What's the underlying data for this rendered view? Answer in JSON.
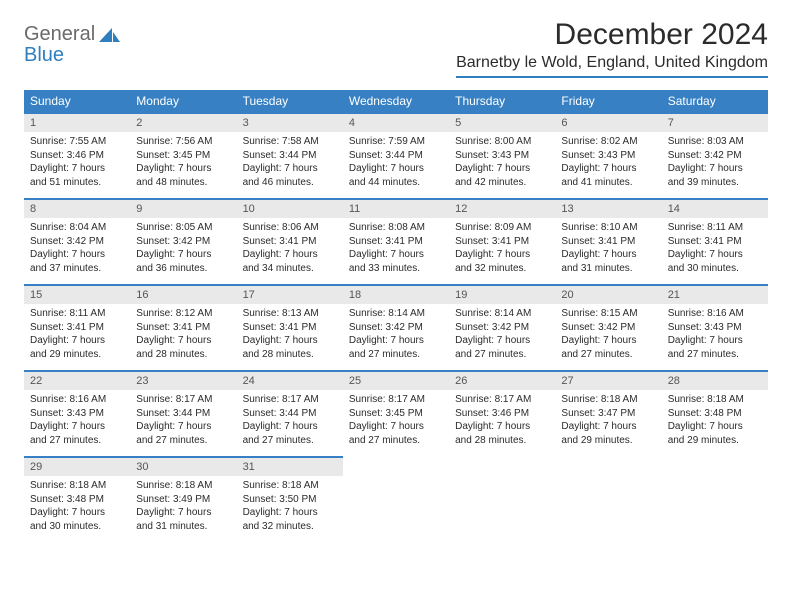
{
  "logo": {
    "word1": "General",
    "word2": "Blue"
  },
  "title": "December 2024",
  "location": "Barnetby le Wold, England, United Kingdom",
  "colors": {
    "brand": "#3780c3",
    "daynum_bg": "#e9e9e9",
    "text": "#2b2b2b",
    "logo_gray": "#6a6a6a",
    "logo_blue": "#2f7fbf"
  },
  "weekdays": [
    "Sunday",
    "Monday",
    "Tuesday",
    "Wednesday",
    "Thursday",
    "Friday",
    "Saturday"
  ],
  "weeks": [
    [
      {
        "n": "1",
        "sunrise": "Sunrise: 7:55 AM",
        "sunset": "Sunset: 3:46 PM",
        "day1": "Daylight: 7 hours",
        "day2": "and 51 minutes."
      },
      {
        "n": "2",
        "sunrise": "Sunrise: 7:56 AM",
        "sunset": "Sunset: 3:45 PM",
        "day1": "Daylight: 7 hours",
        "day2": "and 48 minutes."
      },
      {
        "n": "3",
        "sunrise": "Sunrise: 7:58 AM",
        "sunset": "Sunset: 3:44 PM",
        "day1": "Daylight: 7 hours",
        "day2": "and 46 minutes."
      },
      {
        "n": "4",
        "sunrise": "Sunrise: 7:59 AM",
        "sunset": "Sunset: 3:44 PM",
        "day1": "Daylight: 7 hours",
        "day2": "and 44 minutes."
      },
      {
        "n": "5",
        "sunrise": "Sunrise: 8:00 AM",
        "sunset": "Sunset: 3:43 PM",
        "day1": "Daylight: 7 hours",
        "day2": "and 42 minutes."
      },
      {
        "n": "6",
        "sunrise": "Sunrise: 8:02 AM",
        "sunset": "Sunset: 3:43 PM",
        "day1": "Daylight: 7 hours",
        "day2": "and 41 minutes."
      },
      {
        "n": "7",
        "sunrise": "Sunrise: 8:03 AM",
        "sunset": "Sunset: 3:42 PM",
        "day1": "Daylight: 7 hours",
        "day2": "and 39 minutes."
      }
    ],
    [
      {
        "n": "8",
        "sunrise": "Sunrise: 8:04 AM",
        "sunset": "Sunset: 3:42 PM",
        "day1": "Daylight: 7 hours",
        "day2": "and 37 minutes."
      },
      {
        "n": "9",
        "sunrise": "Sunrise: 8:05 AM",
        "sunset": "Sunset: 3:42 PM",
        "day1": "Daylight: 7 hours",
        "day2": "and 36 minutes."
      },
      {
        "n": "10",
        "sunrise": "Sunrise: 8:06 AM",
        "sunset": "Sunset: 3:41 PM",
        "day1": "Daylight: 7 hours",
        "day2": "and 34 minutes."
      },
      {
        "n": "11",
        "sunrise": "Sunrise: 8:08 AM",
        "sunset": "Sunset: 3:41 PM",
        "day1": "Daylight: 7 hours",
        "day2": "and 33 minutes."
      },
      {
        "n": "12",
        "sunrise": "Sunrise: 8:09 AM",
        "sunset": "Sunset: 3:41 PM",
        "day1": "Daylight: 7 hours",
        "day2": "and 32 minutes."
      },
      {
        "n": "13",
        "sunrise": "Sunrise: 8:10 AM",
        "sunset": "Sunset: 3:41 PM",
        "day1": "Daylight: 7 hours",
        "day2": "and 31 minutes."
      },
      {
        "n": "14",
        "sunrise": "Sunrise: 8:11 AM",
        "sunset": "Sunset: 3:41 PM",
        "day1": "Daylight: 7 hours",
        "day2": "and 30 minutes."
      }
    ],
    [
      {
        "n": "15",
        "sunrise": "Sunrise: 8:11 AM",
        "sunset": "Sunset: 3:41 PM",
        "day1": "Daylight: 7 hours",
        "day2": "and 29 minutes."
      },
      {
        "n": "16",
        "sunrise": "Sunrise: 8:12 AM",
        "sunset": "Sunset: 3:41 PM",
        "day1": "Daylight: 7 hours",
        "day2": "and 28 minutes."
      },
      {
        "n": "17",
        "sunrise": "Sunrise: 8:13 AM",
        "sunset": "Sunset: 3:41 PM",
        "day1": "Daylight: 7 hours",
        "day2": "and 28 minutes."
      },
      {
        "n": "18",
        "sunrise": "Sunrise: 8:14 AM",
        "sunset": "Sunset: 3:42 PM",
        "day1": "Daylight: 7 hours",
        "day2": "and 27 minutes."
      },
      {
        "n": "19",
        "sunrise": "Sunrise: 8:14 AM",
        "sunset": "Sunset: 3:42 PM",
        "day1": "Daylight: 7 hours",
        "day2": "and 27 minutes."
      },
      {
        "n": "20",
        "sunrise": "Sunrise: 8:15 AM",
        "sunset": "Sunset: 3:42 PM",
        "day1": "Daylight: 7 hours",
        "day2": "and 27 minutes."
      },
      {
        "n": "21",
        "sunrise": "Sunrise: 8:16 AM",
        "sunset": "Sunset: 3:43 PM",
        "day1": "Daylight: 7 hours",
        "day2": "and 27 minutes."
      }
    ],
    [
      {
        "n": "22",
        "sunrise": "Sunrise: 8:16 AM",
        "sunset": "Sunset: 3:43 PM",
        "day1": "Daylight: 7 hours",
        "day2": "and 27 minutes."
      },
      {
        "n": "23",
        "sunrise": "Sunrise: 8:17 AM",
        "sunset": "Sunset: 3:44 PM",
        "day1": "Daylight: 7 hours",
        "day2": "and 27 minutes."
      },
      {
        "n": "24",
        "sunrise": "Sunrise: 8:17 AM",
        "sunset": "Sunset: 3:44 PM",
        "day1": "Daylight: 7 hours",
        "day2": "and 27 minutes."
      },
      {
        "n": "25",
        "sunrise": "Sunrise: 8:17 AM",
        "sunset": "Sunset: 3:45 PM",
        "day1": "Daylight: 7 hours",
        "day2": "and 27 minutes."
      },
      {
        "n": "26",
        "sunrise": "Sunrise: 8:17 AM",
        "sunset": "Sunset: 3:46 PM",
        "day1": "Daylight: 7 hours",
        "day2": "and 28 minutes."
      },
      {
        "n": "27",
        "sunrise": "Sunrise: 8:18 AM",
        "sunset": "Sunset: 3:47 PM",
        "day1": "Daylight: 7 hours",
        "day2": "and 29 minutes."
      },
      {
        "n": "28",
        "sunrise": "Sunrise: 8:18 AM",
        "sunset": "Sunset: 3:48 PM",
        "day1": "Daylight: 7 hours",
        "day2": "and 29 minutes."
      }
    ],
    [
      {
        "n": "29",
        "sunrise": "Sunrise: 8:18 AM",
        "sunset": "Sunset: 3:48 PM",
        "day1": "Daylight: 7 hours",
        "day2": "and 30 minutes."
      },
      {
        "n": "30",
        "sunrise": "Sunrise: 8:18 AM",
        "sunset": "Sunset: 3:49 PM",
        "day1": "Daylight: 7 hours",
        "day2": "and 31 minutes."
      },
      {
        "n": "31",
        "sunrise": "Sunrise: 8:18 AM",
        "sunset": "Sunset: 3:50 PM",
        "day1": "Daylight: 7 hours",
        "day2": "and 32 minutes."
      },
      null,
      null,
      null,
      null
    ]
  ]
}
